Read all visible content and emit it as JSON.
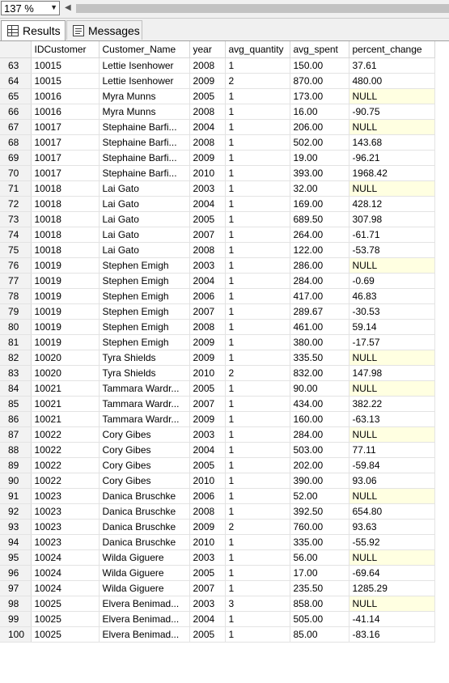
{
  "toolbar": {
    "zoom": "137 %"
  },
  "tabs": {
    "results": "Results",
    "messages": "Messages"
  },
  "columns": [
    "IDCustomer",
    "Customer_Name",
    "year",
    "avg_quantity",
    "avg_spent",
    "percent_change"
  ],
  "rows": [
    [
      "63",
      "10015",
      "Lettie Isenhower",
      "2008",
      "1",
      "150.00",
      "37.61"
    ],
    [
      "64",
      "10015",
      "Lettie Isenhower",
      "2009",
      "2",
      "870.00",
      "480.00"
    ],
    [
      "65",
      "10016",
      "Myra Munns",
      "2005",
      "1",
      "173.00",
      "NULL"
    ],
    [
      "66",
      "10016",
      "Myra Munns",
      "2008",
      "1",
      "16.00",
      "-90.75"
    ],
    [
      "67",
      "10017",
      "Stephaine Barfi...",
      "2004",
      "1",
      "206.00",
      "NULL"
    ],
    [
      "68",
      "10017",
      "Stephaine Barfi...",
      "2008",
      "1",
      "502.00",
      "143.68"
    ],
    [
      "69",
      "10017",
      "Stephaine Barfi...",
      "2009",
      "1",
      "19.00",
      "-96.21"
    ],
    [
      "70",
      "10017",
      "Stephaine Barfi...",
      "2010",
      "1",
      "393.00",
      "1968.42"
    ],
    [
      "71",
      "10018",
      "Lai Gato",
      "2003",
      "1",
      "32.00",
      "NULL"
    ],
    [
      "72",
      "10018",
      "Lai Gato",
      "2004",
      "1",
      "169.00",
      "428.12"
    ],
    [
      "73",
      "10018",
      "Lai Gato",
      "2005",
      "1",
      "689.50",
      "307.98"
    ],
    [
      "74",
      "10018",
      "Lai Gato",
      "2007",
      "1",
      "264.00",
      "-61.71"
    ],
    [
      "75",
      "10018",
      "Lai Gato",
      "2008",
      "1",
      "122.00",
      "-53.78"
    ],
    [
      "76",
      "10019",
      "Stephen Emigh",
      "2003",
      "1",
      "286.00",
      "NULL"
    ],
    [
      "77",
      "10019",
      "Stephen Emigh",
      "2004",
      "1",
      "284.00",
      "-0.69"
    ],
    [
      "78",
      "10019",
      "Stephen Emigh",
      "2006",
      "1",
      "417.00",
      "46.83"
    ],
    [
      "79",
      "10019",
      "Stephen Emigh",
      "2007",
      "1",
      "289.67",
      "-30.53"
    ],
    [
      "80",
      "10019",
      "Stephen Emigh",
      "2008",
      "1",
      "461.00",
      "59.14"
    ],
    [
      "81",
      "10019",
      "Stephen Emigh",
      "2009",
      "1",
      "380.00",
      "-17.57"
    ],
    [
      "82",
      "10020",
      "Tyra Shields",
      "2009",
      "1",
      "335.50",
      "NULL"
    ],
    [
      "83",
      "10020",
      "Tyra Shields",
      "2010",
      "2",
      "832.00",
      "147.98"
    ],
    [
      "84",
      "10021",
      "Tammara Wardr...",
      "2005",
      "1",
      "90.00",
      "NULL"
    ],
    [
      "85",
      "10021",
      "Tammara Wardr...",
      "2007",
      "1",
      "434.00",
      "382.22"
    ],
    [
      "86",
      "10021",
      "Tammara Wardr...",
      "2009",
      "1",
      "160.00",
      "-63.13"
    ],
    [
      "87",
      "10022",
      "Cory Gibes",
      "2003",
      "1",
      "284.00",
      "NULL"
    ],
    [
      "88",
      "10022",
      "Cory Gibes",
      "2004",
      "1",
      "503.00",
      "77.11"
    ],
    [
      "89",
      "10022",
      "Cory Gibes",
      "2005",
      "1",
      "202.00",
      "-59.84"
    ],
    [
      "90",
      "10022",
      "Cory Gibes",
      "2010",
      "1",
      "390.00",
      "93.06"
    ],
    [
      "91",
      "10023",
      "Danica Bruschke",
      "2006",
      "1",
      "52.00",
      "NULL"
    ],
    [
      "92",
      "10023",
      "Danica Bruschke",
      "2008",
      "1",
      "392.50",
      "654.80"
    ],
    [
      "93",
      "10023",
      "Danica Bruschke",
      "2009",
      "2",
      "760.00",
      "93.63"
    ],
    [
      "94",
      "10023",
      "Danica Bruschke",
      "2010",
      "1",
      "335.00",
      "-55.92"
    ],
    [
      "95",
      "10024",
      "Wilda Giguere",
      "2003",
      "1",
      "56.00",
      "NULL"
    ],
    [
      "96",
      "10024",
      "Wilda Giguere",
      "2005",
      "1",
      "17.00",
      "-69.64"
    ],
    [
      "97",
      "10024",
      "Wilda Giguere",
      "2007",
      "1",
      "235.50",
      "1285.29"
    ],
    [
      "98",
      "10025",
      "Elvera Benimad...",
      "2003",
      "3",
      "858.00",
      "NULL"
    ],
    [
      "99",
      "10025",
      "Elvera Benimad...",
      "2004",
      "1",
      "505.00",
      "-41.14"
    ],
    [
      "100",
      "10025",
      "Elvera Benimad...",
      "2005",
      "1",
      "85.00",
      "-83.16"
    ]
  ],
  "colors": {
    "null_cell": "#ffffe1",
    "row_header": "#f2f2f2"
  }
}
